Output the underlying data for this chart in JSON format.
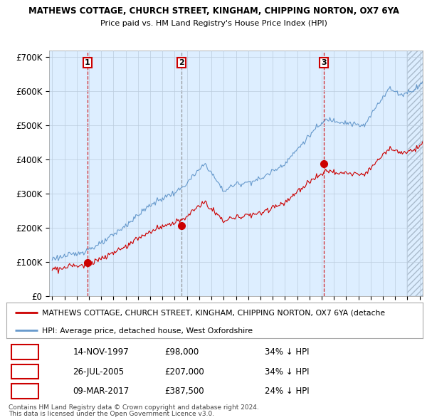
{
  "title1": "MATHEWS COTTAGE, CHURCH STREET, KINGHAM, CHIPPING NORTON, OX7 6YA",
  "title2": "Price paid vs. HM Land Registry's House Price Index (HPI)",
  "xlim": [
    1994.75,
    2025.25
  ],
  "ylim": [
    0,
    720000
  ],
  "yticks": [
    0,
    100000,
    200000,
    300000,
    400000,
    500000,
    600000,
    700000
  ],
  "ytick_labels": [
    "£0",
    "£100K",
    "£200K",
    "£300K",
    "£400K",
    "£500K",
    "£600K",
    "£700K"
  ],
  "purchase_dates": [
    1997.87,
    2005.57,
    2017.19
  ],
  "purchase_prices": [
    98000,
    207000,
    387500
  ],
  "purchase_labels": [
    "1",
    "2",
    "3"
  ],
  "vline_colors": [
    "#cc0000",
    "#888888",
    "#cc0000"
  ],
  "vline_styles": [
    "--",
    "--",
    "--"
  ],
  "red_line_color": "#cc0000",
  "blue_line_color": "#6699cc",
  "dot_color": "#cc0000",
  "chart_bg_color": "#ddeeff",
  "legend_red_label": "MATHEWS COTTAGE, CHURCH STREET, KINGHAM, CHIPPING NORTON, OX7 6YA (detache",
  "legend_blue_label": "HPI: Average price, detached house, West Oxfordshire",
  "table_rows": [
    [
      "1",
      "14-NOV-1997",
      "£98,000",
      "34% ↓ HPI"
    ],
    [
      "2",
      "26-JUL-2005",
      "£207,000",
      "34% ↓ HPI"
    ],
    [
      "3",
      "09-MAR-2017",
      "£387,500",
      "24% ↓ HPI"
    ]
  ],
  "footnote1": "Contains HM Land Registry data © Crown copyright and database right 2024.",
  "footnote2": "This data is licensed under the Open Government Licence v3.0.",
  "background_color": "#ffffff",
  "grid_color": "#bbccdd"
}
